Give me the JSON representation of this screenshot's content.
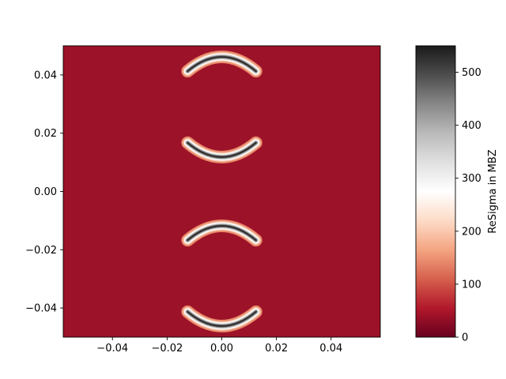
{
  "chart_data": {
    "type": "heatmap",
    "title": "",
    "xlabel": "",
    "ylabel": "",
    "xlim": [
      -0.058,
      0.058
    ],
    "ylim": [
      -0.05,
      0.05
    ],
    "x_ticks": [
      -0.04,
      -0.02,
      0.0,
      0.02,
      0.04
    ],
    "x_tick_labels": [
      "−0.04",
      "−0.02",
      "0.00",
      "0.02",
      "0.04"
    ],
    "y_ticks": [
      0.04,
      0.02,
      0.0,
      -0.02,
      -0.04
    ],
    "y_tick_labels": [
      "0.04",
      "0.02",
      "0.00",
      "−0.02",
      "−0.04"
    ],
    "background_value": 30,
    "background_color": "#9c1228",
    "features": [
      {
        "shape": "arc",
        "opening": "down",
        "center": [
          0.0,
          0.043
        ],
        "halfwidth": 0.0125,
        "peak_value": 530
      },
      {
        "shape": "arc",
        "opening": "up",
        "center": [
          0.0,
          0.015
        ],
        "halfwidth": 0.0125,
        "peak_value": 510
      },
      {
        "shape": "arc",
        "opening": "down",
        "center": [
          0.0,
          -0.015
        ],
        "halfwidth": 0.0125,
        "peak_value": 510
      },
      {
        "shape": "arc",
        "opening": "up",
        "center": [
          0.0,
          -0.043
        ],
        "halfwidth": 0.0125,
        "peak_value": 530
      }
    ],
    "colorbar": {
      "label": "ReSigma in MBZ",
      "range": [
        0,
        550
      ],
      "ticks": [
        0,
        100,
        200,
        300,
        400,
        500
      ],
      "tick_labels": [
        "0",
        "100",
        "200",
        "300",
        "400",
        "500"
      ],
      "colormap": "RdGy",
      "colors": [
        "#67001f",
        "#b2182b",
        "#d6604d",
        "#f4a582",
        "#fddbc7",
        "#ffffff",
        "#e0e0e0",
        "#bababa",
        "#878787",
        "#4d4d4d",
        "#1a1a1a"
      ]
    }
  }
}
